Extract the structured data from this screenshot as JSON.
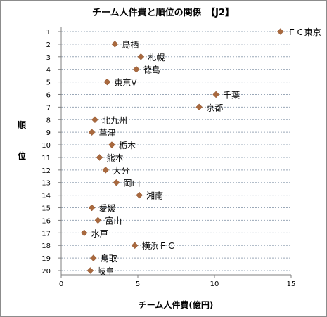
{
  "chart_data": {
    "type": "scatter",
    "title": "チーム人件費と順位の関係　【J2】",
    "xlabel": "チーム人件費(億円)",
    "ylabel": [
      "順",
      "位"
    ],
    "xlim": [
      0,
      15
    ],
    "xticks": [
      0,
      5,
      10,
      15
    ],
    "ylim": [
      1,
      20
    ],
    "yticks": [
      1,
      2,
      3,
      4,
      5,
      6,
      7,
      8,
      9,
      10,
      11,
      12,
      13,
      14,
      15,
      16,
      17,
      18,
      19,
      20
    ],
    "y_inverted": true,
    "grid": "horizontal-dashed",
    "marker": "diamond",
    "marker_color": "#a9693e",
    "points": [
      {
        "team": "ＦＣ東京",
        "x": 14.3,
        "y": 1
      },
      {
        "team": "鳥栖",
        "x": 3.5,
        "y": 2
      },
      {
        "team": "札幌",
        "x": 5.2,
        "y": 3
      },
      {
        "team": "徳島",
        "x": 4.9,
        "y": 4
      },
      {
        "team": "東京V",
        "x": 3.0,
        "y": 5
      },
      {
        "team": "千葉",
        "x": 10.1,
        "y": 6
      },
      {
        "team": "京都",
        "x": 9.0,
        "y": 7
      },
      {
        "team": "北九州",
        "x": 2.2,
        "y": 8
      },
      {
        "team": "草津",
        "x": 2.0,
        "y": 9
      },
      {
        "team": "栃木",
        "x": 3.3,
        "y": 10
      },
      {
        "team": "熊本",
        "x": 2.5,
        "y": 11
      },
      {
        "team": "大分",
        "x": 2.9,
        "y": 12
      },
      {
        "team": "岡山",
        "x": 3.6,
        "y": 13
      },
      {
        "team": "湘南",
        "x": 5.1,
        "y": 14
      },
      {
        "team": "愛媛",
        "x": 2.0,
        "y": 15
      },
      {
        "team": "富山",
        "x": 2.4,
        "y": 16
      },
      {
        "team": "水戸",
        "x": 1.5,
        "y": 17
      },
      {
        "team": "横浜ＦＣ",
        "x": 4.8,
        "y": 18
      },
      {
        "team": "鳥取",
        "x": 2.1,
        "y": 19
      },
      {
        "team": "岐阜",
        "x": 1.9,
        "y": 20
      }
    ]
  }
}
